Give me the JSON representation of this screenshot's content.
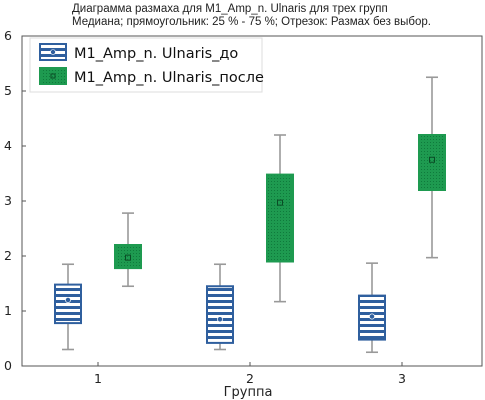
{
  "chart_data": {
    "type": "box",
    "title": "Диаграмма размаха для M1_Amp_n. Ulnaris для трех групп",
    "subtitle": "Медиана; прямоугольник: 25 % - 75 %; Отрезок: Размах без выбор.",
    "xlabel": "Группа",
    "ylabel": "",
    "categories": [
      "1",
      "2",
      "3"
    ],
    "ylim": [
      0,
      6
    ],
    "yticks": [
      "0",
      "1",
      "2",
      "3",
      "4",
      "5",
      "6"
    ],
    "legend_position": "top-left",
    "grid": false,
    "series": [
      {
        "name": "M1_Amp_n. Ulnaris_до",
        "color": "#2f5f9e",
        "style": "striped",
        "boxes": [
          {
            "min": 0.3,
            "q1": 0.78,
            "median": 1.2,
            "q3": 1.48,
            "max": 1.85
          },
          {
            "min": 0.3,
            "q1": 0.42,
            "median": 0.85,
            "q3": 1.45,
            "max": 1.85
          },
          {
            "min": 0.25,
            "q1": 0.48,
            "median": 0.9,
            "q3": 1.28,
            "max": 1.87
          }
        ]
      },
      {
        "name": "M1_Amp_n. Ulnaris_после",
        "color": "#1e9a50",
        "style": "dotted",
        "boxes": [
          {
            "min": 1.45,
            "q1": 1.78,
            "median": 1.97,
            "q3": 2.2,
            "max": 2.78
          },
          {
            "min": 1.17,
            "q1": 1.9,
            "median": 2.97,
            "q3": 3.48,
            "max": 4.2
          },
          {
            "min": 1.97,
            "q1": 3.2,
            "median": 3.75,
            "q3": 4.2,
            "max": 5.25
          }
        ]
      }
    ]
  }
}
